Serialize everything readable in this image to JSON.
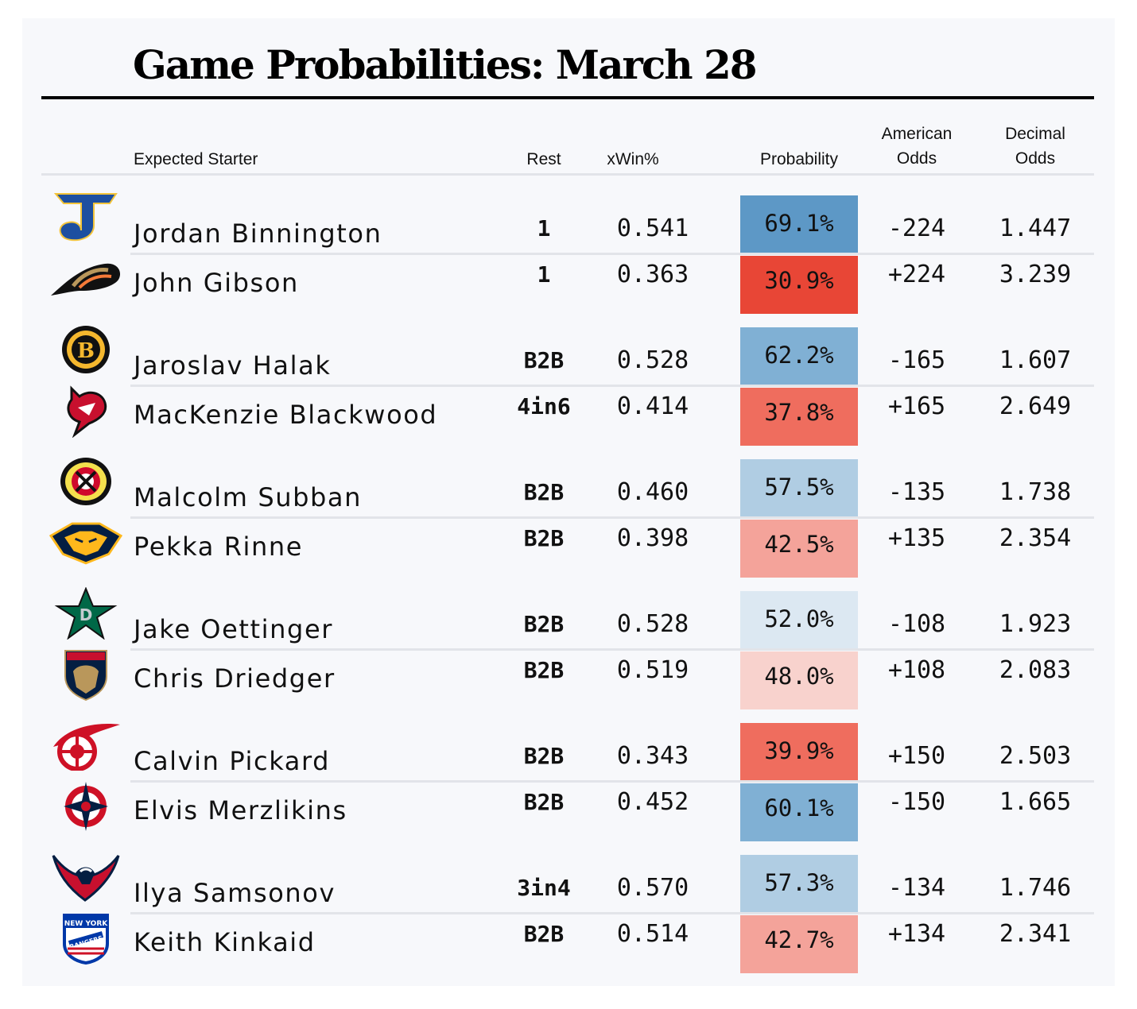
{
  "title": "Game Probabilities: March 28",
  "headers": {
    "starter": "Expected Starter",
    "rest": "Rest",
    "xwin": "xWin%",
    "probability": "Probability",
    "american_1": "American",
    "american_2": "Odds",
    "decimal_1": "Decimal",
    "decimal_2": "Odds"
  },
  "colors": {
    "favorite_strong": "#5d98c6",
    "underdog_strong": "#e84636"
  },
  "chart_data": {
    "type": "table",
    "title": "Game Probabilities: March 28",
    "columns": [
      "Expected Starter",
      "Rest",
      "xWin%",
      "Probability",
      "American Odds",
      "Decimal Odds"
    ],
    "games": [
      {
        "rows": [
          {
            "team_icon": "st-louis-blues-logo-icon",
            "starter": "Jordan Binnington",
            "rest": "1",
            "xwin": "0.541",
            "probability": "69.1%",
            "american": "-224",
            "decimal": "1.447",
            "color": "#5d98c6"
          },
          {
            "team_icon": "anaheim-ducks-logo-icon",
            "starter": "John Gibson",
            "rest": "1",
            "xwin": "0.363",
            "probability": "30.9%",
            "american": "+224",
            "decimal": "3.239",
            "color": "#e84636"
          }
        ]
      },
      {
        "rows": [
          {
            "team_icon": "boston-bruins-logo-icon",
            "starter": "Jaroslav Halak",
            "rest": "B2B",
            "xwin": "0.528",
            "probability": "62.2%",
            "american": "-165",
            "decimal": "1.607",
            "color": "#80b0d4"
          },
          {
            "team_icon": "new-jersey-devils-logo-icon",
            "starter": "MacKenzie Blackwood",
            "rest": "4in6",
            "xwin": "0.414",
            "probability": "37.8%",
            "american": "+165",
            "decimal": "2.649",
            "color": "#ef6d5e"
          }
        ]
      },
      {
        "rows": [
          {
            "team_icon": "chicago-blackhawks-logo-icon",
            "starter": "Malcolm Subban",
            "rest": "B2B",
            "xwin": "0.460",
            "probability": "57.5%",
            "american": "-135",
            "decimal": "1.738",
            "color": "#b0cde3"
          },
          {
            "team_icon": "nashville-predators-logo-icon",
            "starter": "Pekka Rinne",
            "rest": "B2B",
            "xwin": "0.398",
            "probability": "42.5%",
            "american": "+135",
            "decimal": "2.354",
            "color": "#f4a39a"
          }
        ]
      },
      {
        "rows": [
          {
            "team_icon": "dallas-stars-logo-icon",
            "starter": "Jake Oettinger",
            "rest": "B2B",
            "xwin": "0.528",
            "probability": "52.0%",
            "american": "-108",
            "decimal": "1.923",
            "color": "#dce8f2"
          },
          {
            "team_icon": "florida-panthers-logo-icon",
            "starter": "Chris Driedger",
            "rest": "B2B",
            "xwin": "0.519",
            "probability": "48.0%",
            "american": "+108",
            "decimal": "2.083",
            "color": "#f8d2cd"
          }
        ]
      },
      {
        "rows": [
          {
            "team_icon": "detroit-red-wings-logo-icon",
            "starter": "Calvin Pickard",
            "rest": "B2B",
            "xwin": "0.343",
            "probability": "39.9%",
            "american": "+150",
            "decimal": "2.503",
            "color": "#ef6d5e"
          },
          {
            "team_icon": "columbus-blue-jackets-logo-icon",
            "starter": "Elvis Merzlikins",
            "rest": "B2B",
            "xwin": "0.452",
            "probability": "60.1%",
            "american": "-150",
            "decimal": "1.665",
            "color": "#80b0d4"
          }
        ]
      },
      {
        "rows": [
          {
            "team_icon": "washington-capitals-logo-icon",
            "starter": "Ilya Samsonov",
            "rest": "3in4",
            "xwin": "0.570",
            "probability": "57.3%",
            "american": "-134",
            "decimal": "1.746",
            "color": "#b0cde3"
          },
          {
            "team_icon": "new-york-rangers-logo-icon",
            "starter": "Keith Kinkaid",
            "rest": "B2B",
            "xwin": "0.514",
            "probability": "42.7%",
            "american": "+134",
            "decimal": "2.341",
            "color": "#f4a39a"
          }
        ]
      }
    ]
  }
}
